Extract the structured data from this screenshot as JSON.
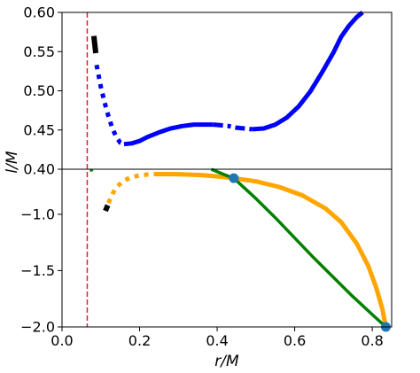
{
  "chart_data": {
    "type": "line",
    "layout": "broken y-axis (two stacked panels sharing x)",
    "xlabel": "r/M",
    "ylabel": "l/M",
    "xlim": [
      0,
      0.85
    ],
    "xticks": [
      0,
      0.2,
      0.4,
      0.6,
      0.8
    ],
    "xtick_labels": [
      "0.0",
      "0.2",
      "0.4",
      "0.6",
      "0.8"
    ],
    "grid": false,
    "legend": "none",
    "top_panel": {
      "ylim": [
        0.4,
        0.6
      ],
      "yticks": [
        0.4,
        0.45,
        0.5,
        0.55,
        0.6
      ],
      "ytick_labels": [
        "0.40",
        "0.45",
        "0.50",
        "0.55",
        "0.60"
      ]
    },
    "bottom_panel": {
      "ylim": [
        -2.0,
        -0.6
      ],
      "yticks": [
        -1.0,
        -1.5,
        -2.0
      ],
      "ytick_labels": [
        "−1.0",
        "−1.5",
        "−2.0"
      ]
    },
    "vertical_line": {
      "x": 0.065,
      "color": "#d62728",
      "style": "dashed"
    },
    "series": [
      {
        "panel": "top",
        "color": "#0000ff",
        "style": "dotted",
        "x": [
          0.089,
          0.1,
          0.11,
          0.12,
          0.13,
          0.14,
          0.15,
          0.16
        ],
        "y": [
          0.533,
          0.505,
          0.485,
          0.467,
          0.452,
          0.441,
          0.434,
          0.432
        ]
      },
      {
        "panel": "top",
        "color": "#0000ff",
        "style": "solid",
        "x": [
          0.16,
          0.18,
          0.2,
          0.22,
          0.25,
          0.28,
          0.31,
          0.34,
          0.37,
          0.39
        ],
        "y": [
          0.432,
          0.433,
          0.436,
          0.441,
          0.447,
          0.452,
          0.455,
          0.457,
          0.457,
          0.457
        ]
      },
      {
        "panel": "top",
        "color": "#0000ff",
        "style": "dashdot",
        "x": [
          0.39,
          0.41,
          0.43,
          0.45,
          0.47,
          0.49
        ],
        "y": [
          0.457,
          0.456,
          0.455,
          0.453,
          0.452,
          0.451
        ]
      },
      {
        "panel": "top",
        "color": "#0000ff",
        "style": "solid",
        "x": [
          0.49,
          0.52,
          0.55,
          0.58,
          0.61,
          0.64,
          0.67,
          0.7,
          0.72,
          0.74,
          0.76,
          0.775
        ],
        "y": [
          0.451,
          0.452,
          0.457,
          0.466,
          0.48,
          0.499,
          0.523,
          0.549,
          0.569,
          0.583,
          0.594,
          0.6
        ]
      },
      {
        "panel": "top",
        "color": "#000000",
        "style": "solid-thick",
        "x": [
          0.082,
          0.087
        ],
        "y": [
          0.57,
          0.548
        ]
      },
      {
        "panel": "bottom",
        "color": "#ffa500",
        "style": "dotted",
        "x": [
          0.12,
          0.13,
          0.14,
          0.16,
          0.18,
          0.2,
          0.22,
          0.24
        ],
        "y": [
          -0.9,
          -0.82,
          -0.76,
          -0.7,
          -0.67,
          -0.655,
          -0.647,
          -0.643
        ]
      },
      {
        "panel": "bottom",
        "color": "#ffa500",
        "style": "solid",
        "x": [
          0.24,
          0.3,
          0.36,
          0.42,
          0.443,
          0.5,
          0.56,
          0.62,
          0.68,
          0.72,
          0.76,
          0.79,
          0.81,
          0.826,
          0.835
        ],
        "y": [
          -0.643,
          -0.644,
          -0.652,
          -0.67,
          -0.68,
          -0.708,
          -0.757,
          -0.832,
          -0.95,
          -1.07,
          -1.26,
          -1.46,
          -1.65,
          -1.84,
          -2.0
        ]
      },
      {
        "panel": "bottom",
        "color": "#008000",
        "style": "solid",
        "x": [
          0.385,
          0.4,
          0.42,
          0.443,
          0.5,
          0.55,
          0.6,
          0.65,
          0.7,
          0.75,
          0.8,
          0.835
        ],
        "y": [
          -0.6,
          -0.621,
          -0.65,
          -0.68,
          -0.86,
          -1.03,
          -1.21,
          -1.39,
          -1.56,
          -1.73,
          -1.89,
          -2.0
        ]
      },
      {
        "panel": "bottom",
        "color": "#008000",
        "style": "solid",
        "x": [
          0.075,
          0.077
        ],
        "y": [
          -0.6,
          -0.62
        ]
      },
      {
        "panel": "bottom",
        "color": "#000000",
        "style": "solid-thick",
        "x": [
          0.112,
          0.118
        ],
        "y": [
          -0.97,
          -0.92
        ]
      }
    ],
    "markers": [
      {
        "panel": "bottom",
        "x": 0.443,
        "y": -0.68,
        "color": "#1f77b4"
      },
      {
        "panel": "bottom",
        "x": 0.835,
        "y": -2.0,
        "color": "#1f77b4"
      }
    ]
  }
}
